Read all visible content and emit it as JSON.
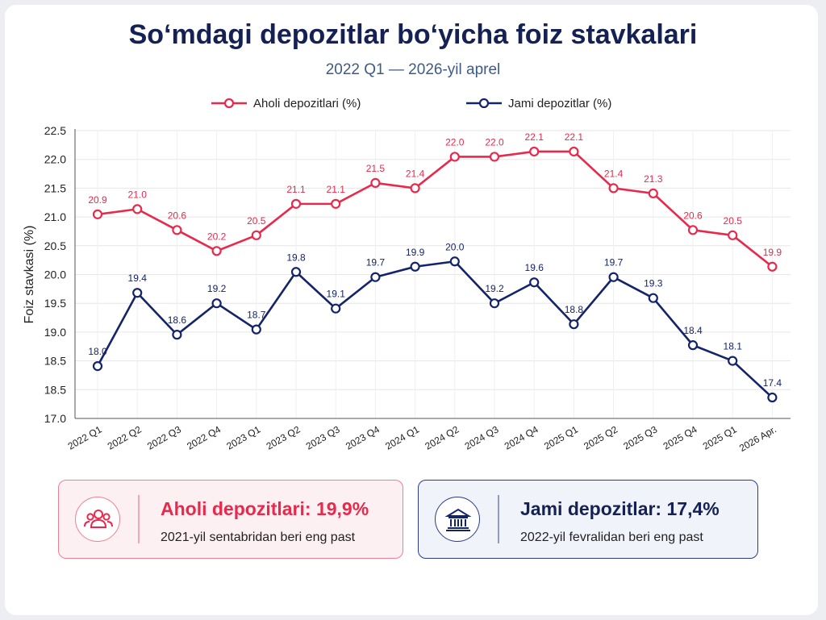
{
  "title": "So‘mdagi depozitlar bo‘yicha foiz stavkalari",
  "subtitle": "2022 Q1 — 2026-yil aprel",
  "colors": {
    "red": "#e8294b",
    "blue": "#142468",
    "title": "#142152"
  },
  "chart_data": {
    "type": "line",
    "ylabel": "Foiz stavkasi (%)",
    "ylim": [
      17.0,
      22.5
    ],
    "yticks": [
      "22.5",
      "22.0",
      "21.5",
      "21.0",
      "20.5",
      "20.0",
      "19.5",
      "19.0",
      "18.5",
      "18.5",
      "17.0"
    ],
    "grid": true,
    "legend_position": "top",
    "categories": [
      "2022 Q1",
      "2022 Q2",
      "2022 Q3",
      "2022 Q4",
      "2023 Q1",
      "2023 Q2",
      "2023 Q3",
      "2023 Q4",
      "2024 Q1",
      "2024 Q2",
      "2024 Q3",
      "2024 Q4",
      "2025 Q1",
      "2025 Q2",
      "2025 Q3",
      "2025 Q4",
      "2025 Q1",
      "2026 Apr."
    ],
    "series": [
      {
        "name": "Aholi depozitlari (%)",
        "color": "#e8294b",
        "values": [
          20.9,
          21.0,
          20.6,
          20.2,
          20.5,
          21.1,
          21.1,
          21.5,
          21.4,
          22.0,
          22.0,
          22.1,
          22.1,
          21.4,
          21.3,
          20.6,
          20.5,
          19.9
        ],
        "labels": [
          "20.9",
          "21.0",
          "20.6",
          "20.2",
          "20.5",
          "21.1",
          "21.1",
          "21.5",
          "21.4",
          "22.0",
          "22.0",
          "22.1",
          "22.1",
          "21.4",
          "21.3",
          "20.6",
          "20.5",
          "19.9"
        ]
      },
      {
        "name": "Jami depozitlar (%)",
        "color": "#142468",
        "values": [
          18.0,
          19.4,
          18.6,
          19.2,
          18.7,
          19.8,
          19.1,
          19.7,
          19.9,
          20.0,
          19.2,
          19.6,
          18.8,
          19.7,
          19.3,
          18.4,
          18.1,
          17.4
        ],
        "labels": [
          "18.0",
          "19.4",
          "18.6",
          "19.2",
          "18.7",
          "19.8",
          "19.1",
          "19.7",
          "19.9",
          "20.0",
          "19.2",
          "19.6",
          "18.8",
          "19.7",
          "19.3",
          "18.4",
          "18.1",
          "17.4"
        ]
      }
    ]
  },
  "cards": [
    {
      "icon": "people-icon",
      "title": "Aholi depozitlari: 19,9%",
      "subtitle": "2021-yil sentabridan beri eng past"
    },
    {
      "icon": "bank-icon",
      "title": "Jami depozitlar: 17,4%",
      "subtitle": "2022-yil fevralidan beri eng past"
    }
  ]
}
